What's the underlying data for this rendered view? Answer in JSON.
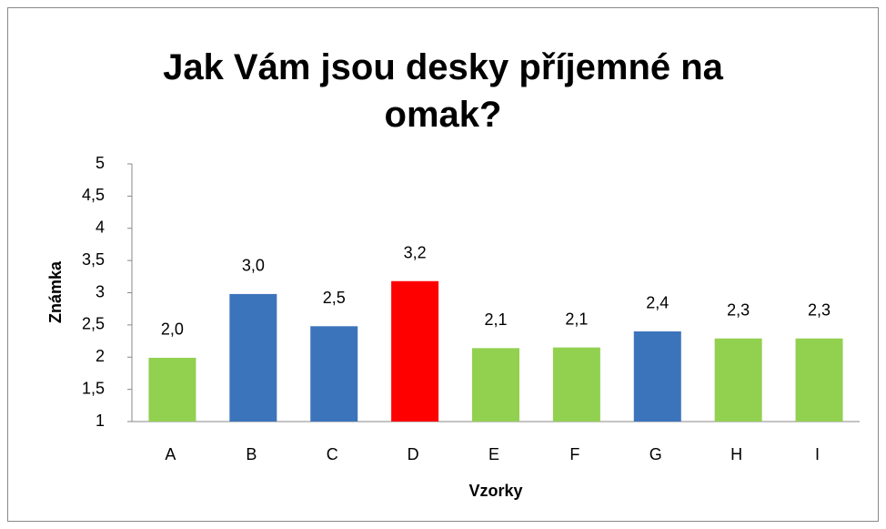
{
  "chart_data": {
    "type": "bar",
    "title": "Jak Vám jsou desky příjemné na omak?",
    "x_label": "Vzorky",
    "y_label": "Známka",
    "categories": [
      "A",
      "B",
      "C",
      "D",
      "E",
      "F",
      "G",
      "H",
      "I"
    ],
    "values": [
      1.99,
      2.98,
      2.48,
      3.18,
      2.14,
      2.15,
      2.4,
      2.29,
      2.29
    ],
    "value_labels": [
      "2,0",
      "3,0",
      "2,5",
      "3,2",
      "2,1",
      "2,1",
      "2,4",
      "2,3",
      "2,3"
    ],
    "colors": [
      "#92d050",
      "#3c74bb",
      "#3c74bb",
      "#ff0000",
      "#92d050",
      "#92d050",
      "#3c74bb",
      "#92d050",
      "#92d050"
    ],
    "ylim": [
      1,
      5
    ],
    "yticks": [
      1,
      {
        "value": 1.5,
        "label": "1,5"
      },
      2,
      {
        "value": 2.5,
        "label": "2,5"
      },
      3,
      {
        "value": 3.5,
        "label": "3,5"
      },
      4,
      {
        "value": 4.5,
        "label": "4,5"
      },
      5
    ],
    "grid": false
  }
}
